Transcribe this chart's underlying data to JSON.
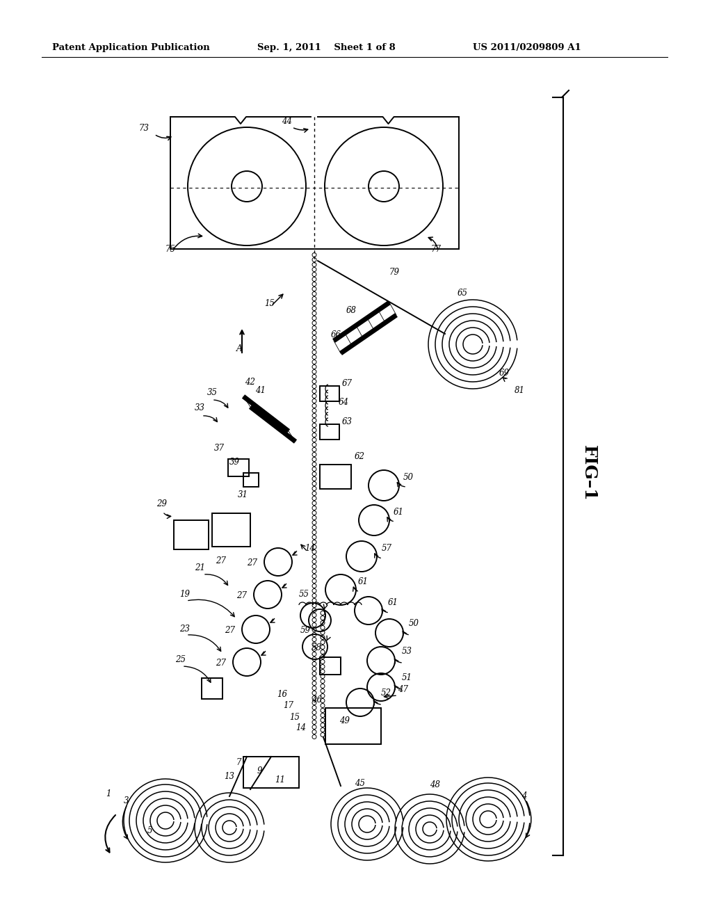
{
  "title_left": "Patent Application Publication",
  "title_mid": "Sep. 1, 2011   Sheet 1 of 8",
  "title_right": "US 2011/0209809 A1",
  "bg_color": "#ffffff",
  "line_color": "#000000",
  "lw": 1.4
}
